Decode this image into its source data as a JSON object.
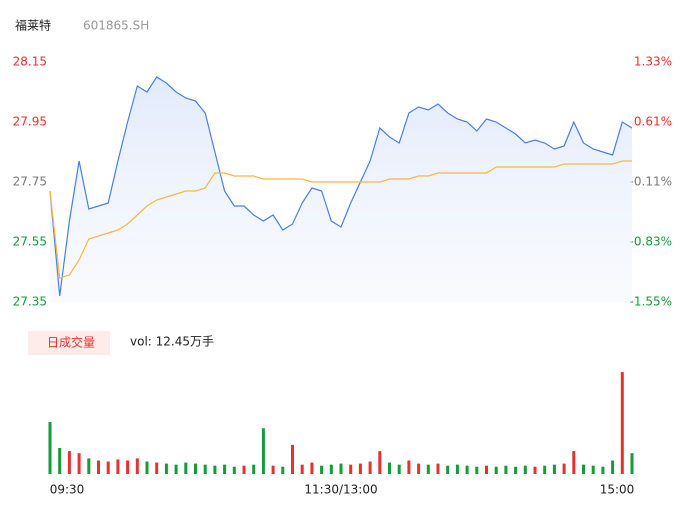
{
  "header": {
    "name": "福莱特",
    "code": "601865.SH"
  },
  "chart_data": [
    {
      "type": "line",
      "categories": [
        null,
        null,
        null,
        null,
        null,
        null,
        null,
        null,
        null,
        null,
        null,
        null,
        null,
        null,
        null,
        null,
        null,
        null,
        null,
        null,
        null,
        null,
        null,
        null,
        null,
        null,
        null,
        null,
        null,
        null,
        null,
        null,
        null,
        null,
        null,
        null,
        null,
        null,
        null,
        null,
        null,
        null,
        null,
        null,
        null,
        null,
        null,
        null,
        null,
        null,
        null,
        null,
        null,
        null,
        null,
        null,
        null,
        null,
        null,
        null,
        null
      ],
      "ylim": [
        27.35,
        28.15
      ],
      "yticks": [
        28.15,
        27.95,
        27.75,
        27.55,
        27.35
      ],
      "y2lim": [
        -1.55,
        1.33
      ],
      "y2ticks": [
        {
          "value": 1.33,
          "label": "1.33%"
        },
        {
          "value": 0.61,
          "label": "0.61%"
        },
        {
          "value": -0.11,
          "label": "-0.11%"
        },
        {
          "value": -0.83,
          "label": "-0.83%"
        },
        {
          "value": -1.55,
          "label": "-1.55%"
        }
      ],
      "tick_colors": [
        "#e8312f",
        "#e8312f",
        "#777777",
        "#159b3a",
        "#159b3a"
      ],
      "grid": false,
      "series": [
        {
          "name": "price",
          "color": "#4a7fe0",
          "fill": true,
          "values": [
            27.72,
            27.37,
            27.62,
            27.82,
            27.66,
            27.67,
            27.68,
            27.82,
            27.95,
            28.07,
            28.05,
            28.1,
            28.08,
            28.05,
            28.03,
            28.02,
            27.98,
            27.85,
            27.72,
            27.67,
            27.67,
            27.64,
            27.62,
            27.64,
            27.59,
            27.61,
            27.68,
            27.73,
            27.72,
            27.62,
            27.6,
            27.68,
            27.75,
            27.82,
            27.93,
            27.9,
            27.88,
            27.98,
            28.0,
            27.99,
            28.01,
            27.98,
            27.96,
            27.95,
            27.92,
            27.96,
            27.95,
            27.93,
            27.91,
            27.88,
            27.89,
            27.88,
            27.86,
            27.87,
            27.95,
            27.88,
            27.86,
            27.85,
            27.84,
            27.95,
            27.93
          ]
        },
        {
          "name": "avg",
          "color": "#f5b942",
          "fill": false,
          "values": [
            27.72,
            27.43,
            27.44,
            27.49,
            27.56,
            27.57,
            27.58,
            27.59,
            27.61,
            27.64,
            27.67,
            27.69,
            27.7,
            27.71,
            27.72,
            27.72,
            27.73,
            27.78,
            27.78,
            27.77,
            27.77,
            27.77,
            27.76,
            27.76,
            27.76,
            27.76,
            27.76,
            27.75,
            27.75,
            27.75,
            27.75,
            27.75,
            27.75,
            27.75,
            27.75,
            27.76,
            27.76,
            27.76,
            27.77,
            27.77,
            27.78,
            27.78,
            27.78,
            27.78,
            27.78,
            27.78,
            27.8,
            27.8,
            27.8,
            27.8,
            27.8,
            27.8,
            27.8,
            27.81,
            27.81,
            27.81,
            27.81,
            27.81,
            27.81,
            27.82,
            27.82
          ]
        }
      ]
    },
    {
      "type": "bar",
      "label": "日成交量",
      "summary": "vol: 12.45万手",
      "categories": [
        "09:30",
        null,
        null,
        null,
        null,
        null,
        null,
        null,
        null,
        null,
        null,
        null,
        null,
        null,
        null,
        null,
        null,
        null,
        null,
        null,
        null,
        null,
        null,
        null,
        null,
        null,
        null,
        null,
        null,
        null,
        "11:30/13:00",
        null,
        null,
        null,
        null,
        null,
        null,
        null,
        null,
        null,
        null,
        null,
        null,
        null,
        null,
        null,
        null,
        null,
        null,
        null,
        null,
        null,
        null,
        null,
        null,
        null,
        null,
        null,
        null,
        null,
        "15:00"
      ],
      "ylim": [
        0,
        10000
      ],
      "up_color": "#e8312f",
      "down_color": "#159b3a",
      "values": [
        5000,
        2500,
        2200,
        2000,
        1500,
        1300,
        1200,
        1400,
        1300,
        1500,
        1200,
        1100,
        1000,
        900,
        1100,
        1000,
        900,
        800,
        900,
        700,
        800,
        900,
        4400,
        800,
        700,
        2800,
        900,
        1100,
        800,
        900,
        1000,
        900,
        1000,
        1200,
        2200,
        1100,
        900,
        1300,
        1000,
        900,
        1000,
        800,
        900,
        800,
        700,
        800,
        700,
        800,
        700,
        800,
        700,
        800,
        900,
        1000,
        2200,
        900,
        800,
        700,
        1300,
        9800,
        2000
      ]
    }
  ]
}
